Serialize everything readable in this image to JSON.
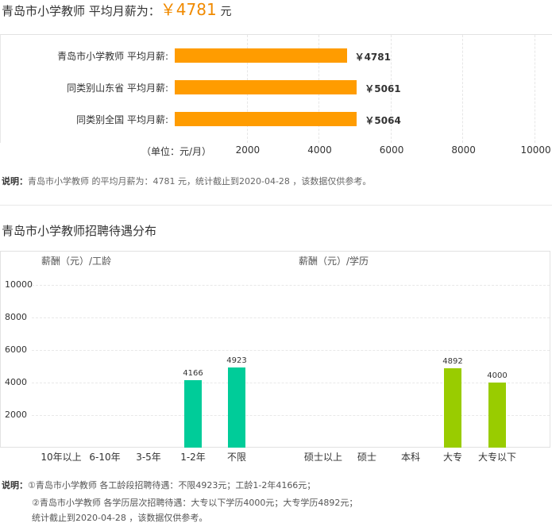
{
  "header": {
    "prefix": "青岛市小学教师 平均月薪为：",
    "amount": "￥4781",
    "unit": "元"
  },
  "salary_chart": {
    "unit_label": "（单位：元/月）",
    "x_ticks": [
      "2000",
      "4000",
      "6000",
      "8000",
      "10000"
    ],
    "rows": [
      {
        "label": "青岛市小学教师 平均月薪:",
        "value": 4781,
        "value_label": "￥4781"
      },
      {
        "label": "同类别山东省 平均月薪:",
        "value": 5061,
        "value_label": "￥5061"
      },
      {
        "label": "同类别全国 平均月薪:",
        "value": 5064,
        "value_label": "￥5064"
      }
    ]
  },
  "note1": {
    "label": "说明：",
    "text": "青岛市小学教师 的平均月薪为：4781 元，统计截止到2020-04-28 ，该数据仅供参考。"
  },
  "section2": {
    "title": "青岛市小学教师招聘待遇分布",
    "left_label": "薪酬（元）/工龄",
    "right_label": "薪酬（元）/学历",
    "y_ticks": [
      "10000",
      "8000",
      "6000",
      "4000",
      "2000"
    ]
  },
  "chart_data": [
    {
      "type": "bar",
      "title": "",
      "xlabel": "",
      "ylabel": "薪酬（元）/工龄",
      "ylim": [
        0,
        10000
      ],
      "categories": [
        "10年以上",
        "6-10年",
        "3-5年",
        "1-2年",
        "不限"
      ],
      "values": [
        null,
        null,
        null,
        4166,
        4923
      ],
      "color": "#00cc99"
    },
    {
      "type": "bar",
      "title": "",
      "xlabel": "",
      "ylabel": "薪酬（元）/学历",
      "ylim": [
        0,
        10000
      ],
      "categories": [
        "硕士以上",
        "硕士",
        "本科",
        "大专",
        "大专以下"
      ],
      "values": [
        null,
        null,
        null,
        4892,
        4000
      ],
      "color": "#99cc00"
    },
    {
      "type": "bar",
      "title": "",
      "xlabel": "（单位：元/月）",
      "ylabel": "",
      "xlim": [
        0,
        10000
      ],
      "categories": [
        "青岛市小学教师 平均月薪:",
        "同类别山东省 平均月薪:",
        "同类别全国 平均月薪:"
      ],
      "values": [
        4781,
        5061,
        5064
      ],
      "color": "#ff9c00"
    }
  ],
  "footer": {
    "label": "说明：",
    "line1": "①青岛市小学教师 各工龄段招聘待遇：不限4923元；工龄1-2年4166元；",
    "line2": "②青岛市小学教师 各学历层次招聘待遇：大专以下学历4000元；大专学历4892元；",
    "line3": "统计截止到2020-04-28 ，该数据仅供参考。"
  }
}
